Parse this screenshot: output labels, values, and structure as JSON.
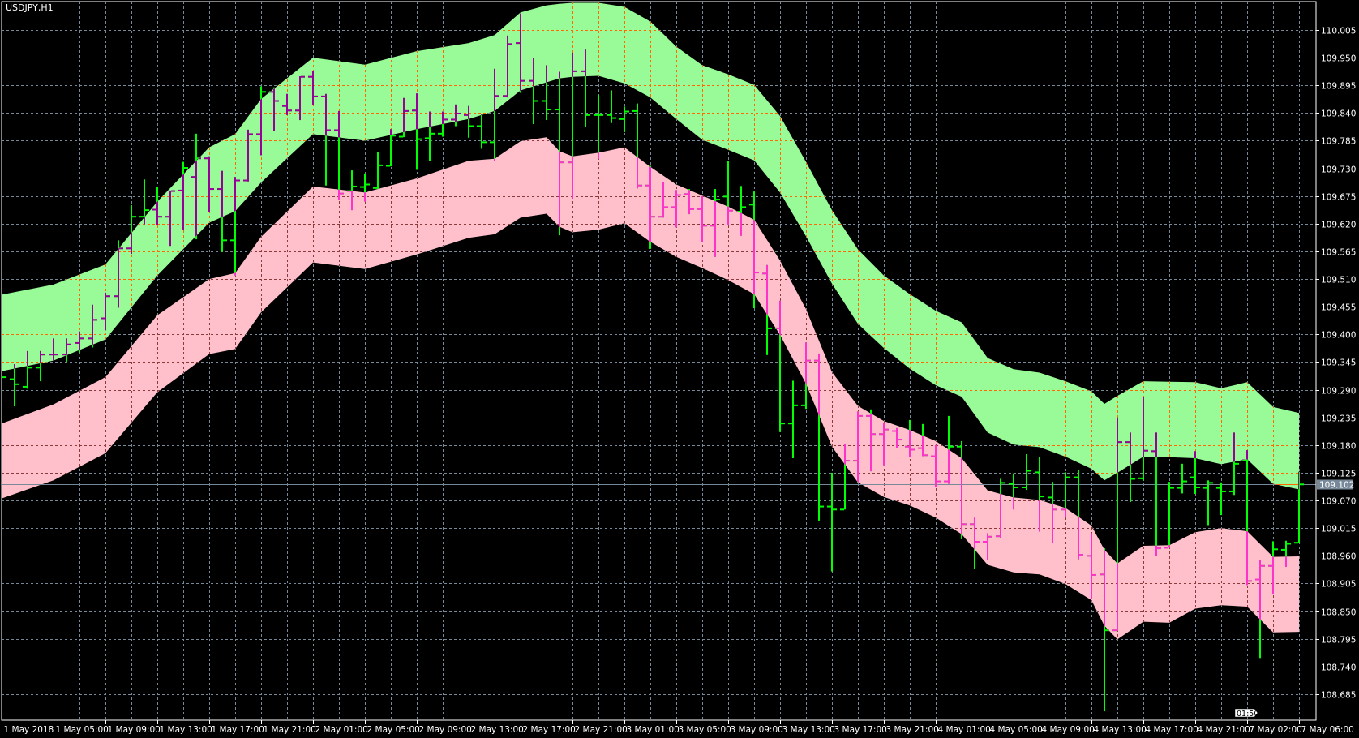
{
  "window": {
    "title": "USDJPY,H1"
  },
  "colors": {
    "background": "#000000",
    "grid": "#778899",
    "grid_in_upper_band": "#ff6a00",
    "grid_in_lower_band": "#8b3a3a",
    "bar": "#00ff00",
    "bar_in_upper_band": "#990099",
    "bar_in_lower_band": "#ff33cc",
    "upper_band_fill": "#98fb98",
    "lower_band_fill": "#ffc0cb",
    "axis": "#ffffff",
    "bid_label_bg": "#778899"
  },
  "chart_data": {
    "type": "ohlc",
    "symbol": "USDJPY",
    "timeframe": "H1",
    "ylim": [
      108.63,
      110.06
    ],
    "grid": true,
    "y_ticks": [
      "110.005",
      "109.950",
      "109.895",
      "109.840",
      "109.785",
      "109.730",
      "109.675",
      "109.620",
      "109.565",
      "109.510",
      "109.455",
      "109.400",
      "109.345",
      "109.290",
      "109.235",
      "109.180",
      "109.125",
      "109.070",
      "109.015",
      "108.960",
      "108.905",
      "108.850",
      "108.795",
      "108.740",
      "108.685"
    ],
    "x_ticks": [
      "1 May 2018",
      "1 May 05:00",
      "1 May 09:00",
      "1 May 13:00",
      "1 May 17:00",
      "1 May 21:00",
      "2 May 01:00",
      "2 May 05:00",
      "2 May 09:00",
      "2 May 13:00",
      "2 May 17:00",
      "2 May 21:00",
      "3 May 01:00",
      "3 May 05:00",
      "3 May 09:00",
      "3 May 13:00",
      "3 May 17:00",
      "3 May 21:00",
      "4 May 01:00",
      "4 May 05:00",
      "4 May 09:00",
      "4 May 13:00",
      "4 May 17:00",
      "4 May 21:00",
      "7 May 02:00",
      "7 May 06:00"
    ],
    "current_price": "109.102",
    "time_to_close": "01:50",
    "bars_columns": [
      "time",
      "open",
      "high",
      "low",
      "close"
    ],
    "bars": [
      [
        "1 May 01:00",
        109.326,
        109.339,
        109.301,
        109.315
      ],
      [
        "1 May 02:00",
        109.311,
        109.341,
        109.257,
        109.301
      ],
      [
        "1 May 03:00",
        109.296,
        109.367,
        109.292,
        109.334
      ],
      [
        "1 May 04:00",
        109.334,
        109.367,
        109.307,
        109.36
      ],
      [
        "1 May 05:00",
        109.36,
        109.392,
        109.348,
        109.36
      ],
      [
        "1 May 06:00",
        109.36,
        109.392,
        109.346,
        109.38
      ],
      [
        "1 May 07:00",
        109.383,
        109.406,
        109.364,
        109.392
      ],
      [
        "1 May 08:00",
        109.392,
        109.459,
        109.374,
        109.429
      ],
      [
        "1 May 09:00",
        109.432,
        109.483,
        109.408,
        109.476
      ],
      [
        "1 May 10:00",
        109.476,
        109.587,
        109.453,
        109.571
      ],
      [
        "1 May 11:00",
        109.571,
        109.657,
        109.56,
        109.634
      ],
      [
        "1 May 12:00",
        109.634,
        109.708,
        109.619,
        109.647
      ],
      [
        "1 May 13:00",
        109.648,
        109.694,
        109.617,
        109.634
      ],
      [
        "1 May 14:00",
        109.634,
        109.686,
        109.576,
        109.685
      ],
      [
        "1 May 15:00",
        109.686,
        109.743,
        109.608,
        109.731
      ],
      [
        "1 May 16:00",
        109.713,
        109.799,
        109.589,
        109.75
      ],
      [
        "1 May 17:00",
        109.75,
        109.754,
        109.643,
        109.689
      ],
      [
        "1 May 18:00",
        109.689,
        109.725,
        109.564,
        109.587
      ],
      [
        "1 May 19:00",
        109.587,
        109.713,
        109.517,
        109.706
      ],
      [
        "1 May 20:00",
        109.706,
        109.807,
        109.704,
        109.798
      ],
      [
        "1 May 21:00",
        109.798,
        109.893,
        109.756,
        109.882
      ],
      [
        "1 May 22:00",
        109.882,
        109.891,
        109.804,
        109.864
      ],
      [
        "1 May 23:00",
        109.854,
        109.878,
        109.836,
        109.845
      ],
      [
        "2 May 00:00",
        109.845,
        109.913,
        109.826,
        109.912
      ],
      [
        "2 May 01:00",
        109.912,
        109.923,
        109.856,
        109.873
      ],
      [
        "2 May 02:00",
        109.873,
        109.878,
        109.696,
        109.806
      ],
      [
        "2 May 03:00",
        109.806,
        109.844,
        109.667,
        109.68
      ],
      [
        "2 May 04:00",
        109.685,
        109.726,
        109.647,
        109.694
      ],
      [
        "2 May 05:00",
        109.693,
        109.72,
        109.664,
        109.698
      ],
      [
        "2 May 06:00",
        109.691,
        109.763,
        109.689,
        109.736
      ],
      [
        "2 May 07:00",
        109.735,
        109.808,
        109.734,
        109.795
      ],
      [
        "2 May 08:00",
        109.793,
        109.87,
        109.792,
        109.844
      ],
      [
        "2 May 09:00",
        109.845,
        109.879,
        109.727,
        109.788
      ],
      [
        "2 May 10:00",
        109.79,
        109.843,
        109.745,
        109.799
      ],
      [
        "2 May 11:00",
        109.799,
        109.843,
        109.793,
        109.827
      ],
      [
        "2 May 12:00",
        109.827,
        109.857,
        109.814,
        109.839
      ],
      [
        "2 May 13:00",
        109.836,
        109.854,
        109.791,
        109.814
      ],
      [
        "2 May 14:00",
        109.814,
        109.837,
        109.769,
        109.782
      ],
      [
        "2 May 15:00",
        109.782,
        109.928,
        109.745,
        109.874
      ],
      [
        "2 May 16:00",
        109.874,
        109.994,
        109.871,
        109.977
      ],
      [
        "2 May 17:00",
        109.979,
        110.038,
        109.88,
        109.904
      ],
      [
        "2 May 18:00",
        109.904,
        109.949,
        109.818,
        109.864
      ],
      [
        "2 May 19:00",
        109.864,
        109.935,
        109.826,
        109.847
      ],
      [
        "2 May 20:00",
        109.847,
        109.922,
        109.597,
        109.742
      ],
      [
        "2 May 21:00",
        109.742,
        109.96,
        109.67,
        109.923
      ],
      [
        "2 May 22:00",
        109.923,
        109.966,
        109.812,
        109.836
      ],
      [
        "2 May 23:00",
        109.836,
        109.876,
        109.749,
        109.836
      ],
      [
        "3 May 00:00",
        109.836,
        109.885,
        109.82,
        109.83
      ],
      [
        "3 May 01:00",
        109.828,
        109.853,
        109.802,
        109.843
      ],
      [
        "3 May 02:00",
        109.844,
        109.859,
        109.69,
        109.696
      ],
      [
        "3 May 03:00",
        109.696,
        109.735,
        109.57,
        109.634
      ],
      [
        "3 May 04:00",
        109.634,
        109.703,
        109.632,
        109.653
      ],
      [
        "3 May 05:00",
        109.653,
        109.687,
        109.613,
        109.677
      ],
      [
        "3 May 06:00",
        109.679,
        109.689,
        109.639,
        109.649
      ],
      [
        "3 May 07:00",
        109.649,
        109.675,
        109.584,
        109.616
      ],
      [
        "3 May 08:00",
        109.616,
        109.689,
        109.554,
        109.668
      ],
      [
        "3 May 09:00",
        109.674,
        109.745,
        109.618,
        109.646
      ],
      [
        "3 May 10:00",
        109.644,
        109.695,
        109.596,
        109.653
      ],
      [
        "3 May 11:00",
        109.658,
        109.684,
        109.452,
        109.523
      ],
      [
        "3 May 12:00",
        109.521,
        109.538,
        109.359,
        109.412
      ],
      [
        "3 May 13:00",
        109.412,
        109.467,
        109.206,
        109.223
      ],
      [
        "3 May 14:00",
        109.223,
        109.308,
        109.154,
        109.259
      ],
      [
        "3 May 15:00",
        109.259,
        109.384,
        109.252,
        109.348
      ],
      [
        "3 May 16:00",
        109.348,
        109.362,
        109.03,
        109.058
      ],
      [
        "3 May 17:00",
        109.058,
        109.125,
        108.929,
        109.052
      ],
      [
        "3 May 18:00",
        109.052,
        109.183,
        109.052,
        109.149
      ],
      [
        "3 May 19:00",
        109.149,
        109.247,
        109.104,
        109.238
      ],
      [
        "3 May 20:00",
        109.238,
        109.251,
        109.128,
        109.202
      ],
      [
        "3 May 21:00",
        109.202,
        109.225,
        109.14,
        109.211
      ],
      [
        "3 May 22:00",
        109.208,
        109.214,
        109.175,
        109.191
      ],
      [
        "3 May 23:00",
        109.177,
        109.23,
        109.156,
        109.171
      ],
      [
        "4 May 00:00",
        109.174,
        109.222,
        109.158,
        109.16
      ],
      [
        "4 May 01:00",
        109.158,
        109.18,
        109.097,
        109.108
      ],
      [
        "4 May 02:00",
        109.108,
        109.238,
        109.103,
        109.177
      ],
      [
        "4 May 03:00",
        109.177,
        109.188,
        108.993,
        109.023
      ],
      [
        "4 May 04:00",
        109.023,
        109.036,
        108.934,
        108.988
      ],
      [
        "4 May 05:00",
        108.988,
        109.005,
        108.952,
        108.998
      ],
      [
        "4 May 06:00",
        108.999,
        109.113,
        108.996,
        109.105
      ],
      [
        "4 May 07:00",
        109.103,
        109.124,
        109.052,
        109.096
      ],
      [
        "4 May 08:00",
        109.096,
        109.162,
        109.091,
        109.129
      ],
      [
        "4 May 09:00",
        109.126,
        109.156,
        109.008,
        109.078
      ],
      [
        "4 May 10:00",
        109.076,
        109.107,
        108.986,
        109.052
      ],
      [
        "4 May 11:00",
        109.052,
        109.126,
        109.036,
        109.116
      ],
      [
        "4 May 12:00",
        109.116,
        109.13,
        108.953,
        108.962
      ],
      [
        "4 May 13:00",
        108.96,
        109.005,
        108.875,
        108.922
      ],
      [
        "4 May 14:00",
        108.923,
        108.975,
        108.651,
        108.812
      ],
      [
        "4 May 15:00",
        108.812,
        109.235,
        108.811,
        109.186
      ],
      [
        "4 May 16:00",
        109.186,
        109.205,
        109.067,
        109.113
      ],
      [
        "4 May 17:00",
        109.114,
        109.275,
        109.109,
        109.169
      ],
      [
        "4 May 18:00",
        109.168,
        109.205,
        108.959,
        108.975
      ],
      [
        "4 May 19:00",
        108.976,
        109.107,
        108.976,
        109.095
      ],
      [
        "4 May 20:00",
        109.095,
        109.143,
        109.084,
        109.108
      ],
      [
        "4 May 21:00",
        109.116,
        109.168,
        109.083,
        109.096
      ],
      [
        "4 May 22:00",
        109.095,
        109.11,
        109.021,
        109.105
      ],
      [
        "4 May 23:00",
        109.095,
        109.106,
        109.041,
        109.088
      ],
      [
        "7 May 01:00",
        109.088,
        109.205,
        109.081,
        109.143
      ],
      [
        "7 May 02:00",
        109.15,
        109.17,
        108.902,
        108.91
      ],
      [
        "7 May 03:00",
        108.913,
        108.951,
        108.757,
        108.94
      ],
      [
        "7 May 04:00",
        108.94,
        108.989,
        108.884,
        108.973
      ],
      [
        "7 May 05:00",
        108.972,
        108.99,
        108.938,
        108.984
      ],
      [
        "7 May 06:00",
        108.986,
        109.127,
        108.986,
        109.102
      ]
    ],
    "bands_columns": [
      "time",
      "upper_top",
      "upper_bottom",
      "lower_top",
      "lower_bottom"
    ],
    "bands": [
      [
        "1 May 01:00",
        109.479,
        109.327,
        109.223,
        109.074
      ],
      [
        "1 May 05:00",
        109.499,
        109.348,
        109.261,
        109.11
      ],
      [
        "1 May 09:00",
        109.539,
        109.39,
        109.315,
        109.164
      ],
      [
        "1 May 13:00",
        109.664,
        109.517,
        109.438,
        109.285
      ],
      [
        "1 May 17:00",
        109.772,
        109.622,
        109.51,
        109.361
      ],
      [
        "1 May 19:00",
        109.798,
        109.645,
        109.522,
        109.371
      ],
      [
        "1 May 21:00",
        109.868,
        109.702,
        109.594,
        109.444
      ],
      [
        "2 May 01:00",
        109.95,
        109.798,
        109.694,
        109.543
      ],
      [
        "2 May 05:00",
        109.936,
        109.785,
        109.682,
        109.53
      ],
      [
        "2 May 09:00",
        109.963,
        109.808,
        109.71,
        109.559
      ],
      [
        "2 May 13:00",
        109.979,
        109.828,
        109.745,
        109.592
      ],
      [
        "2 May 15:00",
        109.995,
        109.844,
        109.749,
        109.599
      ],
      [
        "2 May 17:00",
        110.04,
        109.885,
        109.784,
        109.632
      ],
      [
        "2 May 19:00",
        110.054,
        109.901,
        109.792,
        109.64
      ],
      [
        "2 May 20:00",
        110.057,
        109.909,
        109.764,
        109.614
      ],
      [
        "2 May 21:00",
        110.059,
        109.912,
        109.754,
        109.603
      ],
      [
        "2 May 23:00",
        110.059,
        109.914,
        109.761,
        109.608
      ],
      [
        "3 May 01:00",
        110.051,
        109.899,
        109.772,
        109.621
      ],
      [
        "3 May 03:00",
        110.022,
        109.871,
        109.733,
        109.584
      ],
      [
        "3 May 05:00",
        109.972,
        109.828,
        109.698,
        109.554
      ],
      [
        "3 May 07:00",
        109.935,
        109.787,
        109.676,
        109.532
      ],
      [
        "3 May 09:00",
        109.917,
        109.767,
        109.654,
        109.508
      ],
      [
        "3 May 11:00",
        109.896,
        109.746,
        109.628,
        109.48
      ],
      [
        "3 May 13:00",
        109.834,
        109.682,
        109.547,
        109.399
      ],
      [
        "3 May 15:00",
        109.743,
        109.595,
        109.45,
        109.302
      ],
      [
        "3 May 17:00",
        109.647,
        109.501,
        109.325,
        109.177
      ],
      [
        "3 May 19:00",
        109.569,
        109.421,
        109.258,
        109.106
      ],
      [
        "3 May 21:00",
        109.517,
        109.373,
        109.228,
        109.077
      ],
      [
        "3 May 23:00",
        109.48,
        109.332,
        109.21,
        109.06
      ],
      [
        "4 May 01:00",
        109.447,
        109.299,
        109.188,
        109.036
      ],
      [
        "4 May 03:00",
        109.424,
        109.276,
        109.154,
        109.003
      ],
      [
        "4 May 05:00",
        109.353,
        109.205,
        109.09,
        108.942
      ],
      [
        "4 May 07:00",
        109.331,
        109.181,
        109.076,
        108.927
      ],
      [
        "4 May 09:00",
        109.324,
        109.176,
        109.071,
        108.923
      ],
      [
        "4 May 11:00",
        109.307,
        109.157,
        109.055,
        108.904
      ],
      [
        "4 May 13:00",
        109.287,
        109.133,
        109.02,
        108.872
      ],
      [
        "4 May 14:00",
        109.262,
        109.11,
        108.972,
        108.821
      ],
      [
        "4 May 15:00",
        109.278,
        109.125,
        108.945,
        108.794
      ],
      [
        "4 May 17:00",
        109.307,
        109.157,
        108.98,
        108.829
      ],
      [
        "4 May 19:00",
        109.306,
        109.156,
        108.981,
        108.827
      ],
      [
        "4 May 21:00",
        109.305,
        109.154,
        109.007,
        108.855
      ],
      [
        "4 May 23:00",
        109.293,
        109.142,
        109.015,
        108.862
      ],
      [
        "7 May 02:00",
        109.305,
        109.152,
        109.009,
        108.859
      ],
      [
        "7 May 04:00",
        109.256,
        109.103,
        108.958,
        108.808
      ],
      [
        "7 May 06:00",
        109.244,
        109.092,
        108.959,
        108.809
      ]
    ]
  }
}
